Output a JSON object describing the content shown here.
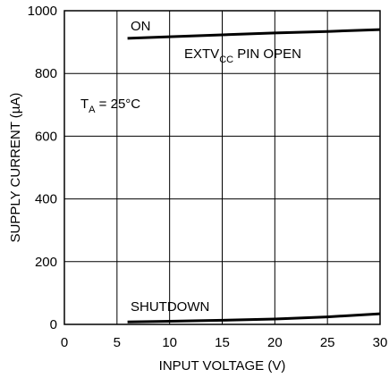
{
  "chart_data": {
    "type": "line",
    "xlabel": "INPUT VOLTAGE (V)",
    "ylabel": "SUPPLY CURRENT (µA)",
    "xlim": [
      0,
      30
    ],
    "ylim": [
      0,
      1000
    ],
    "x_ticks": [
      "0",
      "5",
      "10",
      "15",
      "20",
      "25",
      "30"
    ],
    "y_ticks": [
      "0",
      "200",
      "400",
      "600",
      "800",
      "1000"
    ],
    "grid": true,
    "series": [
      {
        "name": "ON",
        "x": [
          6,
          10,
          15,
          20,
          25,
          30
        ],
        "y": [
          912,
          917,
          923,
          929,
          934,
          940
        ]
      },
      {
        "name": "SHUTDOWN",
        "x": [
          6,
          10,
          15,
          20,
          25,
          30
        ],
        "y": [
          8,
          10,
          13,
          17,
          24,
          34
        ]
      }
    ],
    "annotations": {
      "condition_base": "EXTV",
      "condition_sub": "CC",
      "condition_rest": " PIN OPEN",
      "temp_base": "T",
      "temp_sub": "A",
      "temp_rest": " = 25°C"
    }
  }
}
